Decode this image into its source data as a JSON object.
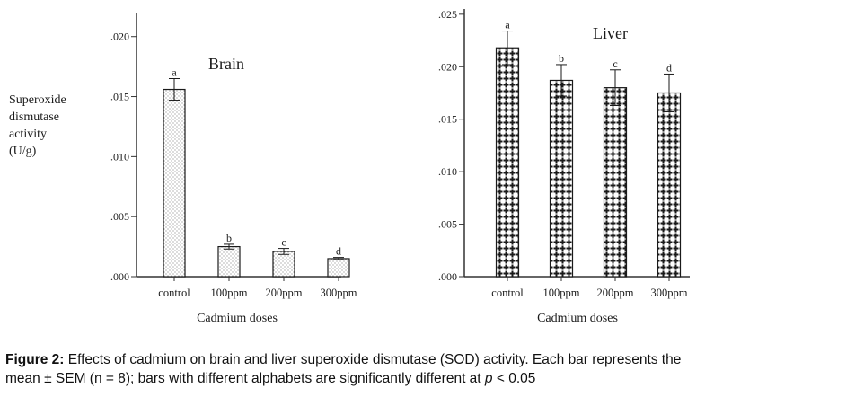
{
  "chart_data": [
    {
      "type": "bar",
      "title": "Brain",
      "ylabel": [
        "Superoxide",
        "dismutase",
        "activity",
        "(U/g)"
      ],
      "xlabel": "Cadmium doses",
      "categories": [
        "control",
        "100ppm",
        "200ppm",
        "300ppm"
      ],
      "values": [
        0.0156,
        0.0025,
        0.0021,
        0.0015
      ],
      "errors": [
        0.0009,
        0.0002,
        0.00025,
        0.0001
      ],
      "letters": [
        "a",
        "b",
        "c",
        "d"
      ],
      "ylim": [
        0,
        0.022
      ],
      "yticks": [
        ".000",
        ".005",
        ".010",
        ".015",
        ".020"
      ],
      "bar_fill": "dotted"
    },
    {
      "type": "bar",
      "title": "Liver",
      "xlabel": "Cadmium doses",
      "categories": [
        "control",
        "100ppm",
        "200ppm",
        "300ppm"
      ],
      "values": [
        0.0218,
        0.0187,
        0.018,
        0.0175
      ],
      "errors": [
        0.0016,
        0.0015,
        0.0017,
        0.0018
      ],
      "letters": [
        "a",
        "b",
        "c",
        "d"
      ],
      "ylim": [
        0,
        0.0255
      ],
      "yticks": [
        ".000",
        ".005",
        ".010",
        ".015",
        ".020",
        ".025"
      ],
      "bar_fill": "crosses"
    }
  ],
  "caption": {
    "label": "Figure 2:",
    "line1": " Effects of cadmium on brain and liver superoxide dismutase (SOD) activity. Each bar represents the",
    "line2_pre": "mean ± SEM (n = 8); bars with different alphabets are significantly different at ",
    "line2_p": "p",
    "line2_post": " < 0.05"
  },
  "colors": {
    "bar_outline": "#1a1a1a",
    "axis": "#333333"
  }
}
